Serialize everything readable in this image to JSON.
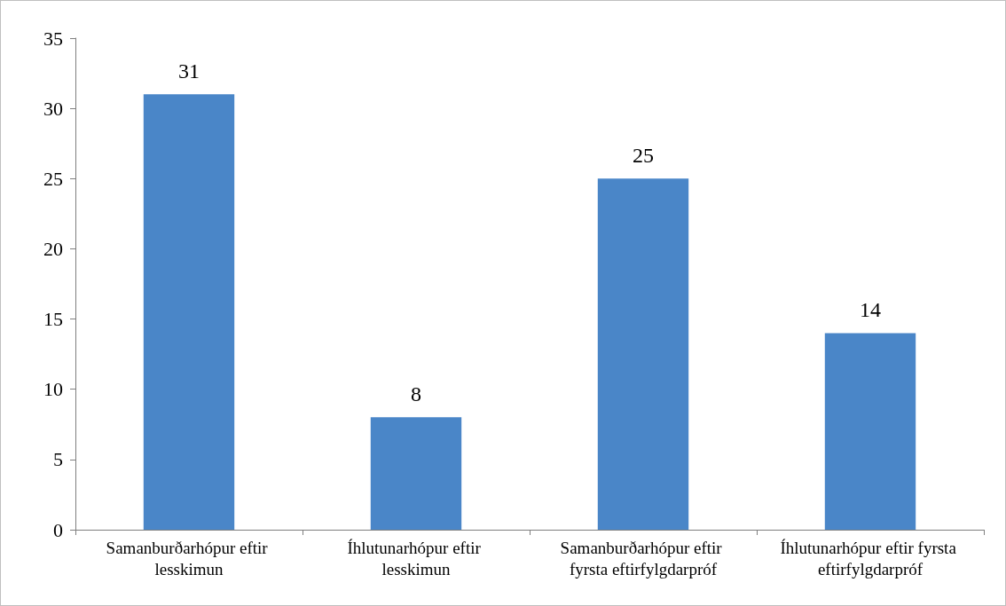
{
  "chart_data": {
    "type": "bar",
    "categories": [
      "Samanburðarhópur eftir lesskimun",
      "Íhlutunarhópur eftir lesskimun",
      "Samanburðarhópur eftir fyrsta eftirfylgdarpróf",
      "Íhlutunarhópur eftir fyrsta eftirfylgdarpróf"
    ],
    "values": [
      31,
      8,
      25,
      14
    ],
    "color": "#4a86c8",
    "ylim": [
      0,
      35
    ],
    "yticks": [
      0,
      5,
      10,
      15,
      20,
      25,
      30,
      35
    ],
    "grid": false,
    "data_labels": true
  }
}
